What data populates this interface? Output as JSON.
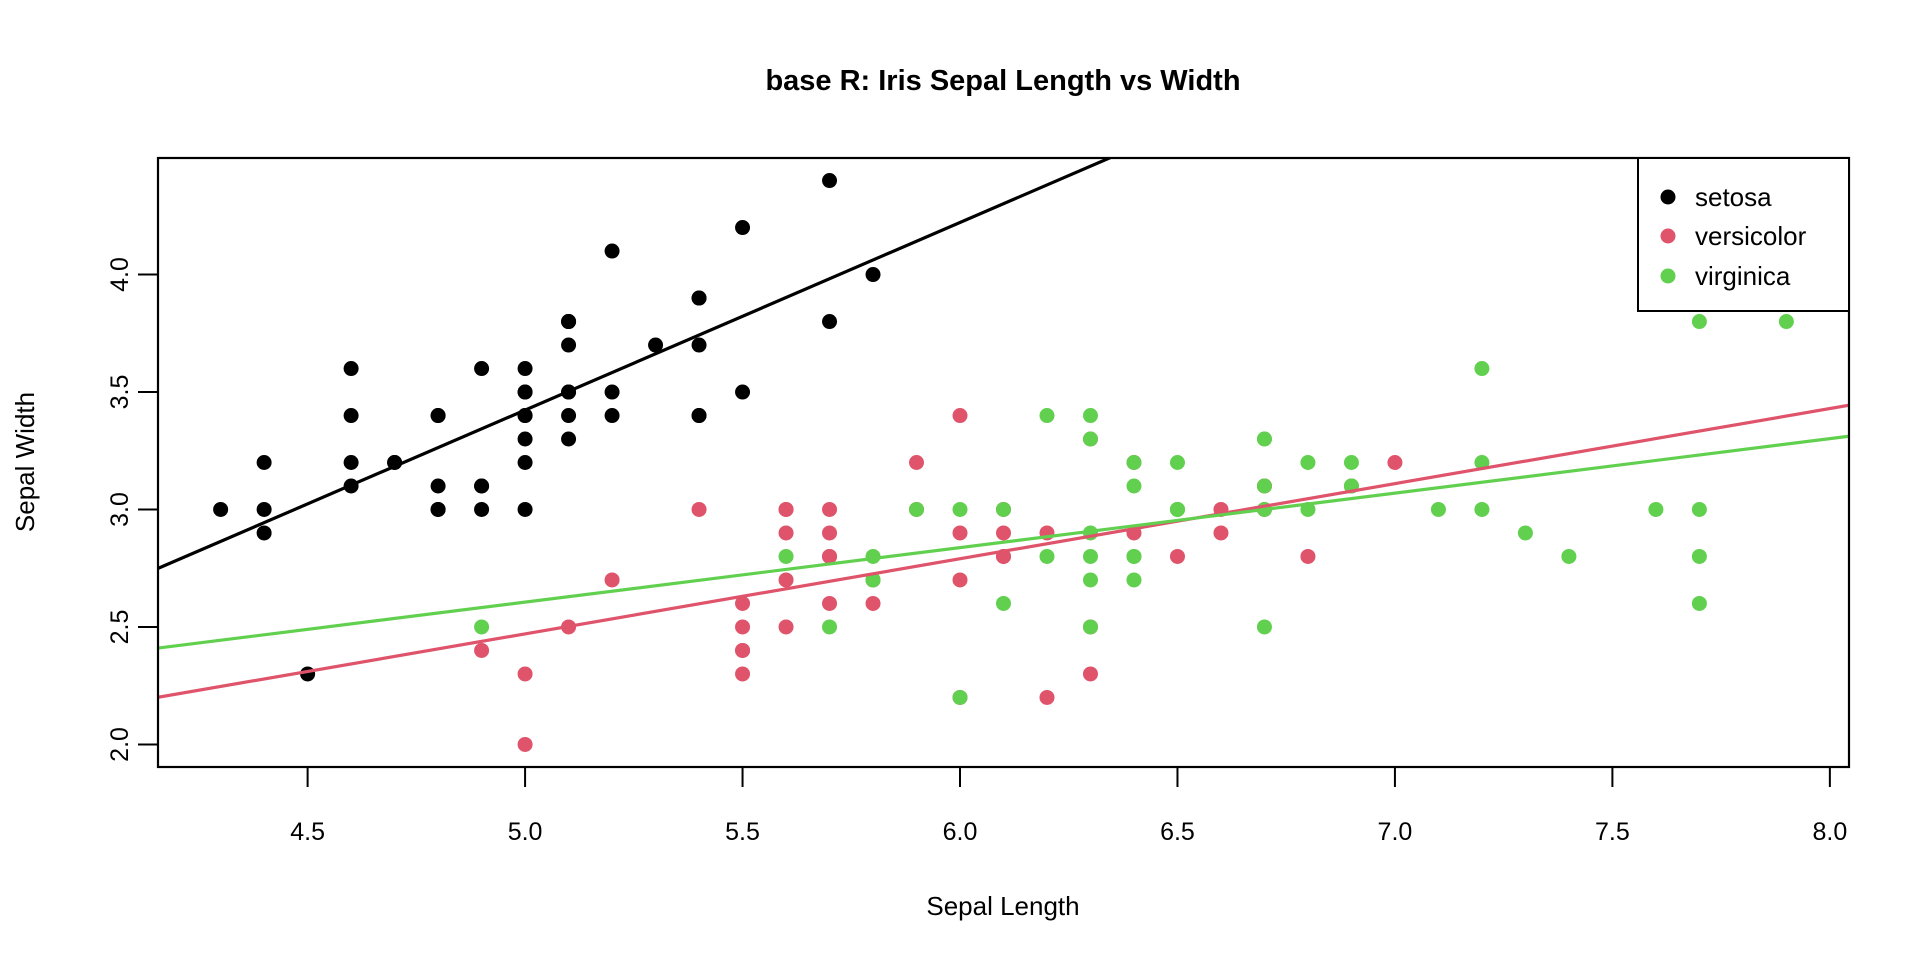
{
  "chart_data": {
    "type": "scatter",
    "title": "base R: Iris Sepal Length vs Width",
    "xlabel": "Sepal Length",
    "ylabel": "Sepal Width",
    "xlim": [
      4.156,
      8.044
    ],
    "ylim": [
      1.904,
      4.496
    ],
    "xticks": [
      "4.5",
      "5.0",
      "5.5",
      "6.0",
      "6.5",
      "7.0",
      "7.5",
      "8.0"
    ],
    "yticks": [
      "2.0",
      "2.5",
      "3.0",
      "3.5",
      "4.0"
    ],
    "grid": false,
    "legend_position": "top-right",
    "series": [
      {
        "name": "setosa",
        "color": "#000000",
        "fit": {
          "intercept": -0.5694,
          "slope": 0.7985
        },
        "points": [
          [
            5.1,
            3.5
          ],
          [
            4.9,
            3.0
          ],
          [
            4.7,
            3.2
          ],
          [
            4.6,
            3.1
          ],
          [
            5.0,
            3.6
          ],
          [
            5.4,
            3.9
          ],
          [
            4.6,
            3.4
          ],
          [
            5.0,
            3.4
          ],
          [
            4.4,
            2.9
          ],
          [
            4.9,
            3.1
          ],
          [
            5.4,
            3.7
          ],
          [
            4.8,
            3.4
          ],
          [
            4.8,
            3.0
          ],
          [
            4.3,
            3.0
          ],
          [
            5.8,
            4.0
          ],
          [
            5.7,
            4.4
          ],
          [
            5.4,
            3.9
          ],
          [
            5.1,
            3.5
          ],
          [
            5.7,
            3.8
          ],
          [
            5.1,
            3.8
          ],
          [
            5.4,
            3.4
          ],
          [
            5.1,
            3.7
          ],
          [
            4.6,
            3.6
          ],
          [
            5.1,
            3.3
          ],
          [
            4.8,
            3.4
          ],
          [
            5.0,
            3.0
          ],
          [
            5.0,
            3.4
          ],
          [
            5.2,
            3.5
          ],
          [
            5.2,
            3.4
          ],
          [
            4.7,
            3.2
          ],
          [
            4.8,
            3.1
          ],
          [
            5.4,
            3.4
          ],
          [
            5.2,
            4.1
          ],
          [
            5.5,
            4.2
          ],
          [
            4.9,
            3.1
          ],
          [
            5.0,
            3.2
          ],
          [
            5.5,
            3.5
          ],
          [
            4.9,
            3.6
          ],
          [
            4.4,
            3.0
          ],
          [
            5.1,
            3.4
          ],
          [
            5.0,
            3.5
          ],
          [
            4.5,
            2.3
          ],
          [
            4.4,
            3.2
          ],
          [
            5.0,
            3.5
          ],
          [
            5.1,
            3.8
          ],
          [
            4.8,
            3.0
          ],
          [
            5.1,
            3.8
          ],
          [
            4.6,
            3.2
          ],
          [
            5.3,
            3.7
          ],
          [
            5.0,
            3.3
          ]
        ]
      },
      {
        "name": "versicolor",
        "color": "#DF536B",
        "fit": {
          "intercept": 0.8721,
          "slope": 0.3197
        },
        "points": [
          [
            7.0,
            3.2
          ],
          [
            6.4,
            3.2
          ],
          [
            6.9,
            3.1
          ],
          [
            5.5,
            2.3
          ],
          [
            6.5,
            2.8
          ],
          [
            5.7,
            2.8
          ],
          [
            6.3,
            3.3
          ],
          [
            4.9,
            2.4
          ],
          [
            6.6,
            2.9
          ],
          [
            5.2,
            2.7
          ],
          [
            5.0,
            2.0
          ],
          [
            5.9,
            3.0
          ],
          [
            6.0,
            2.2
          ],
          [
            6.1,
            2.9
          ],
          [
            5.6,
            2.9
          ],
          [
            6.7,
            3.1
          ],
          [
            5.6,
            3.0
          ],
          [
            5.8,
            2.7
          ],
          [
            6.2,
            2.2
          ],
          [
            5.6,
            2.5
          ],
          [
            5.9,
            3.2
          ],
          [
            6.1,
            2.8
          ],
          [
            6.3,
            2.5
          ],
          [
            6.1,
            2.8
          ],
          [
            6.4,
            2.9
          ],
          [
            6.6,
            3.0
          ],
          [
            6.8,
            2.8
          ],
          [
            6.7,
            3.0
          ],
          [
            6.0,
            2.9
          ],
          [
            5.7,
            2.6
          ],
          [
            5.5,
            2.4
          ],
          [
            5.5,
            2.4
          ],
          [
            5.8,
            2.7
          ],
          [
            6.0,
            2.7
          ],
          [
            5.4,
            3.0
          ],
          [
            6.0,
            3.4
          ],
          [
            6.7,
            3.1
          ],
          [
            6.3,
            2.3
          ],
          [
            5.6,
            3.0
          ],
          [
            5.5,
            2.5
          ],
          [
            5.5,
            2.6
          ],
          [
            6.1,
            3.0
          ],
          [
            5.8,
            2.6
          ],
          [
            5.0,
            2.3
          ],
          [
            5.6,
            2.7
          ],
          [
            5.7,
            3.0
          ],
          [
            5.7,
            2.9
          ],
          [
            6.2,
            2.9
          ],
          [
            5.1,
            2.5
          ],
          [
            5.7,
            2.8
          ]
        ]
      },
      {
        "name": "virginica",
        "color": "#61D04F",
        "fit": {
          "intercept": 1.4463,
          "slope": 0.2319
        },
        "points": [
          [
            6.3,
            3.3
          ],
          [
            5.8,
            2.7
          ],
          [
            7.1,
            3.0
          ],
          [
            6.3,
            2.9
          ],
          [
            6.5,
            3.0
          ],
          [
            7.6,
            3.0
          ],
          [
            4.9,
            2.5
          ],
          [
            7.3,
            2.9
          ],
          [
            6.7,
            2.5
          ],
          [
            7.2,
            3.6
          ],
          [
            6.5,
            3.2
          ],
          [
            6.4,
            2.7
          ],
          [
            6.8,
            3.0
          ],
          [
            5.7,
            2.5
          ],
          [
            5.8,
            2.8
          ],
          [
            6.4,
            3.2
          ],
          [
            6.5,
            3.0
          ],
          [
            7.7,
            3.8
          ],
          [
            7.7,
            2.6
          ],
          [
            6.0,
            2.2
          ],
          [
            6.9,
            3.2
          ],
          [
            5.6,
            2.8
          ],
          [
            7.7,
            2.8
          ],
          [
            6.3,
            2.7
          ],
          [
            6.7,
            3.3
          ],
          [
            7.2,
            3.2
          ],
          [
            6.2,
            2.8
          ],
          [
            6.1,
            3.0
          ],
          [
            6.4,
            2.8
          ],
          [
            7.2,
            3.0
          ],
          [
            7.4,
            2.8
          ],
          [
            7.9,
            3.8
          ],
          [
            6.4,
            2.8
          ],
          [
            6.3,
            2.8
          ],
          [
            6.1,
            2.6
          ],
          [
            7.7,
            3.0
          ],
          [
            6.3,
            3.4
          ],
          [
            6.4,
            3.1
          ],
          [
            6.0,
            3.0
          ],
          [
            6.9,
            3.1
          ],
          [
            6.7,
            3.1
          ],
          [
            6.9,
            3.1
          ],
          [
            5.8,
            2.7
          ],
          [
            6.8,
            3.2
          ],
          [
            6.7,
            3.3
          ],
          [
            6.7,
            3.0
          ],
          [
            6.3,
            2.5
          ],
          [
            6.5,
            3.0
          ],
          [
            6.2,
            3.4
          ],
          [
            5.9,
            3.0
          ]
        ]
      }
    ]
  }
}
